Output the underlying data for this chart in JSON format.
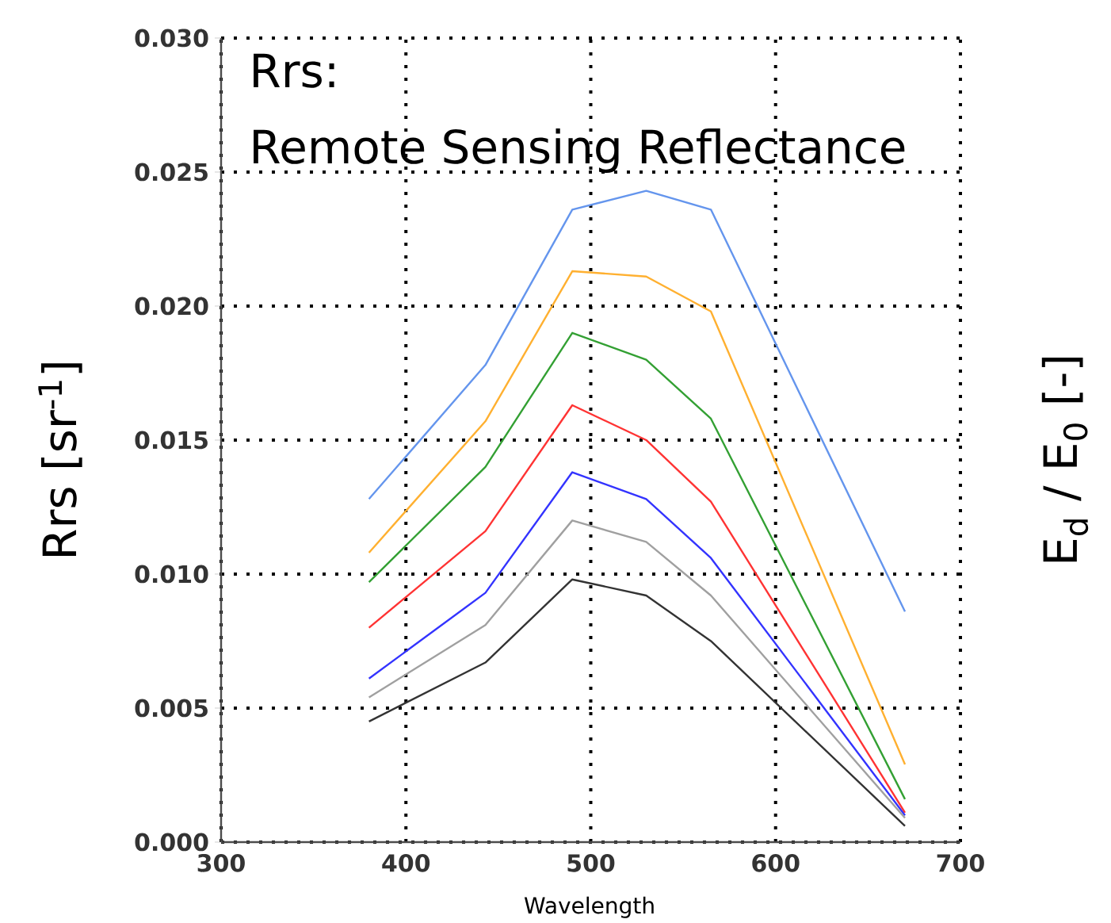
{
  "chart_data": {
    "type": "line",
    "xlabel": "Wavelength",
    "ylabel": "Rrs  [sr$^{-1}$]",
    "y2label": "E$_{d}$ / E$_{0}$ [-]",
    "annotations": [
      "Rrs:",
      "Remote Sensing Reflectance"
    ],
    "x": [
      380,
      443,
      490,
      530,
      565,
      670
    ],
    "series": [
      {
        "color": "#6495ed",
        "values": [
          0.0128,
          0.0178,
          0.0236,
          0.0243,
          0.0236,
          0.0086
        ]
      },
      {
        "color": "#ffb030",
        "values": [
          0.0108,
          0.0157,
          0.0213,
          0.0211,
          0.0198,
          0.0029
        ]
      },
      {
        "color": "#33a033",
        "values": [
          0.0097,
          0.014,
          0.019,
          0.018,
          0.0158,
          0.0016
        ]
      },
      {
        "color": "#ff3333",
        "values": [
          0.008,
          0.0116,
          0.0163,
          0.015,
          0.0127,
          0.0011
        ]
      },
      {
        "color": "#3333ff",
        "values": [
          0.0061,
          0.0093,
          0.0138,
          0.0128,
          0.0106,
          0.001
        ]
      },
      {
        "color": "#a0a0a0",
        "values": [
          0.0054,
          0.0081,
          0.012,
          0.0112,
          0.0092,
          0.0009
        ]
      },
      {
        "color": "#333333",
        "values": [
          0.0045,
          0.0067,
          0.0098,
          0.0092,
          0.0075,
          0.0006
        ]
      }
    ],
    "xlim": [
      300,
      700
    ],
    "ylim": [
      0,
      0.03
    ],
    "xticks": [
      300,
      400,
      500,
      600,
      700
    ],
    "yticks": [
      {
        "value": 0,
        "label": "0.000"
      },
      {
        "value": 0.005,
        "label": "0.005"
      },
      {
        "value": 0.01,
        "label": "0.010"
      },
      {
        "value": 0.015,
        "label": "0.015"
      },
      {
        "value": 0.02,
        "label": "0.020"
      },
      {
        "value": 0.025,
        "label": "0.025"
      },
      {
        "value": 0.03,
        "label": "0.030"
      }
    ],
    "grid": true,
    "marker": "none",
    "line_style": "solid"
  }
}
